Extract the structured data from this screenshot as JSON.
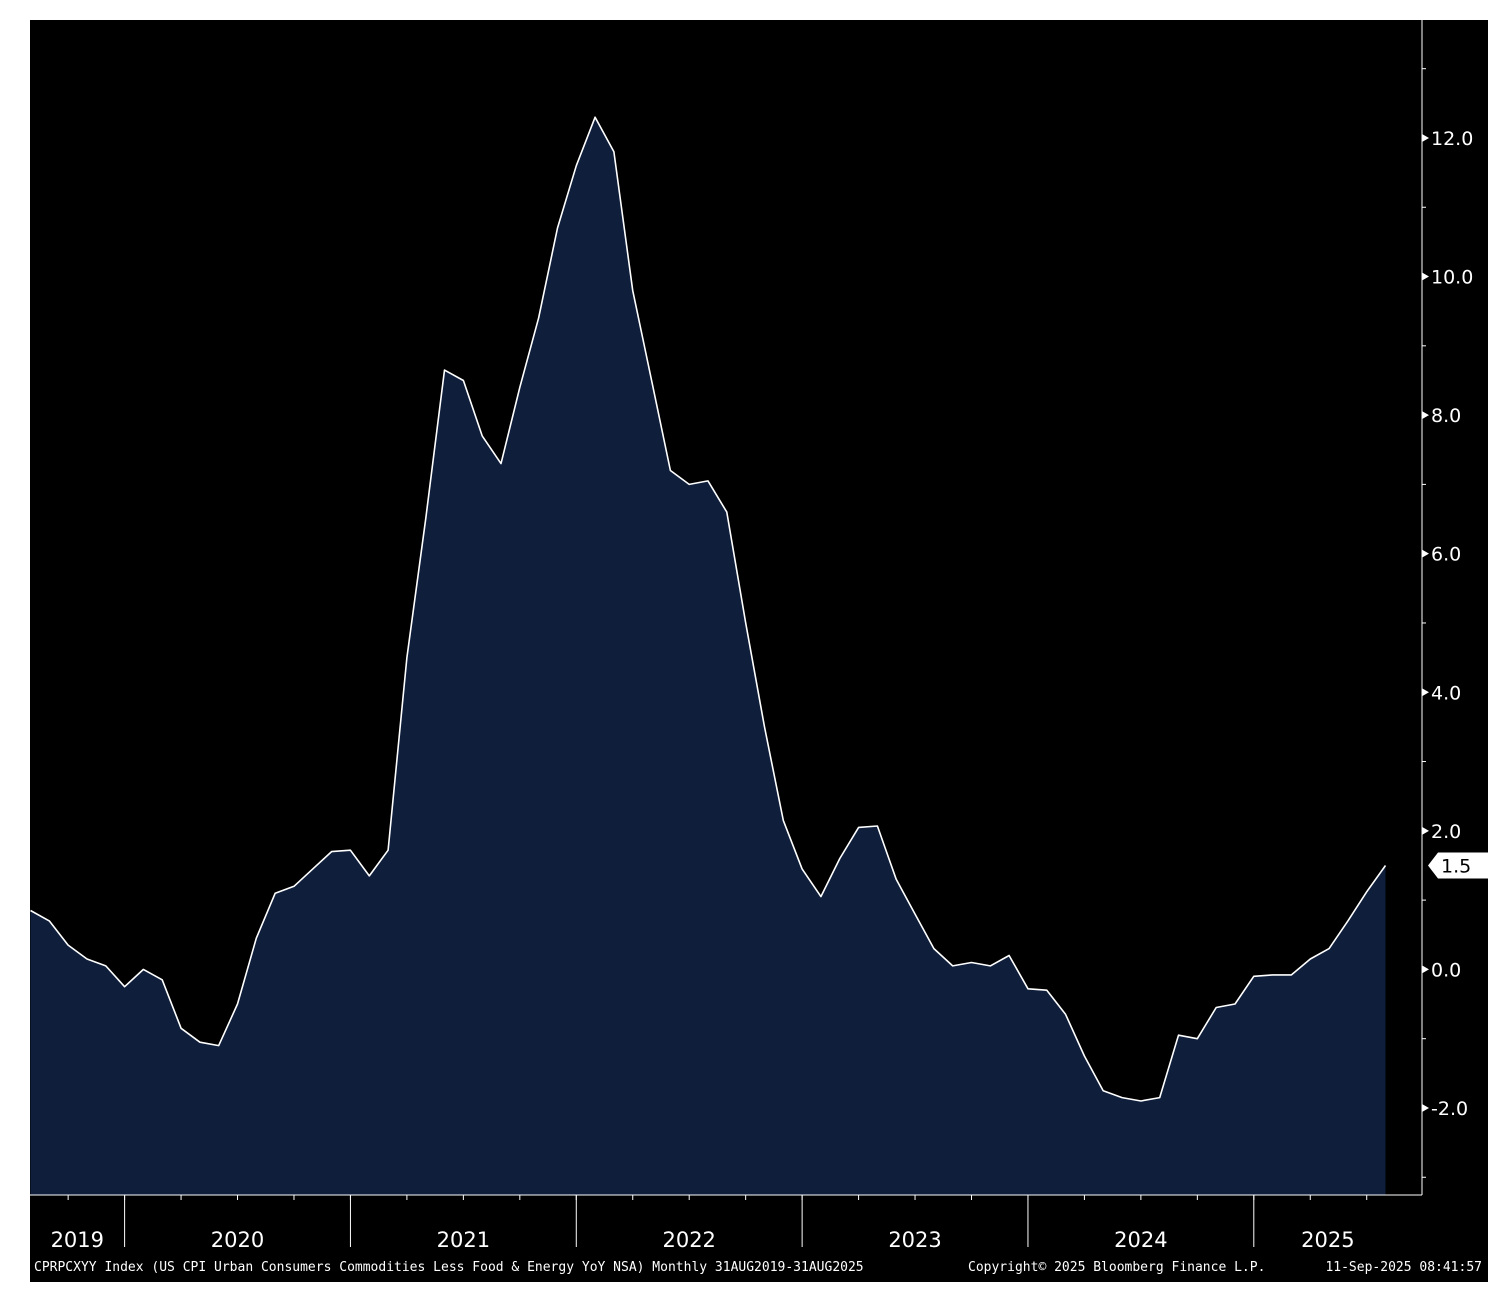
{
  "chart_data": {
    "type": "area",
    "x_range": [
      "2019-08",
      "2025-08"
    ],
    "frequency": "Monthly",
    "series": [
      {
        "values": [
          0.85,
          0.7,
          0.35,
          0.15,
          0.05,
          -0.25,
          0.0,
          -0.15,
          -0.85,
          -1.05,
          -1.1,
          -0.5,
          0.45,
          1.1,
          1.2,
          1.45,
          1.7,
          1.72,
          1.35,
          1.72,
          4.5,
          6.5,
          8.65,
          8.5,
          7.7,
          7.3,
          8.4,
          9.4,
          10.7,
          11.6,
          12.3,
          11.8,
          9.8,
          8.5,
          7.2,
          7.0,
          7.05,
          6.6,
          5.0,
          3.5,
          2.15,
          1.45,
          1.05,
          1.6,
          2.05,
          2.07,
          1.3,
          0.8,
          0.3,
          0.05,
          0.1,
          0.05,
          0.2,
          -0.28,
          -0.3,
          -0.65,
          -1.25,
          -1.75,
          -1.85,
          -1.9,
          -1.85,
          -0.95,
          -1.0,
          -0.55,
          -0.5,
          -0.1,
          -0.08,
          -0.08,
          0.15,
          0.3,
          0.7,
          1.12,
          1.5
        ]
      }
    ],
    "last_value_label": "1.5",
    "y_ticks": [
      "12.0",
      "10.0",
      "8.0",
      "6.0",
      "4.0",
      "2.0",
      "0.0",
      "-2.0"
    ],
    "ylim": [
      -3.3,
      13.5
    ],
    "x_year_labels": [
      "2019",
      "2020",
      "2021",
      "2022",
      "2023",
      "2024",
      "2025"
    ],
    "grid": false,
    "colors": {
      "background": "#000000",
      "fill": "#0e1e3b",
      "line": "#ffffff",
      "axis": "#ffffff"
    }
  },
  "footer": {
    "source": "CPRPCXYY Index (US CPI Urban Consumers Commodities Less Food & Energy YoY NSA)  Monthly 31AUG2019-31AUG2025",
    "copyright": "Copyright© 2025 Bloomberg Finance L.P.",
    "timestamp": "11-Sep-2025 08:41:57"
  }
}
